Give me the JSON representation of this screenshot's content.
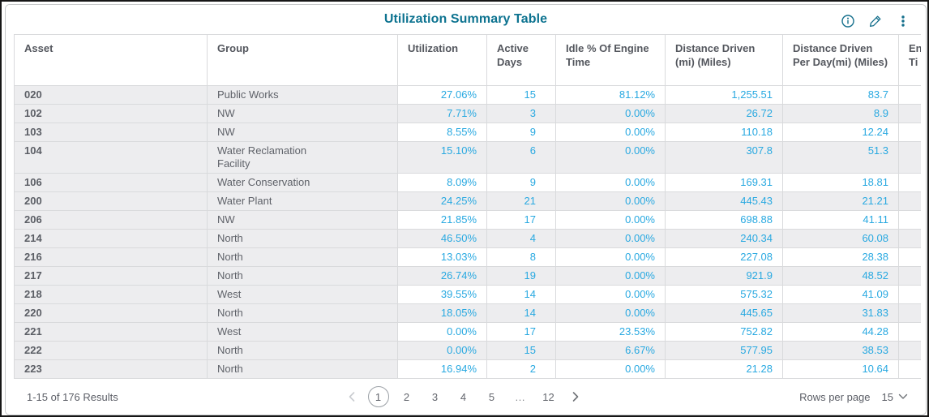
{
  "title": "Utilization Summary Table",
  "toolbar": {
    "icons": [
      {
        "name": "info-icon"
      },
      {
        "name": "edit-pencil-icon"
      },
      {
        "name": "kebab-menu-icon"
      }
    ]
  },
  "colors": {
    "accent_teal": "#0d7390",
    "value_blue": "#29a9e1",
    "row_gray": "#ededef",
    "border_gray": "#d9dadc",
    "header_text": "#54575e"
  },
  "table": {
    "columns": [
      {
        "key": "asset",
        "label": "Asset"
      },
      {
        "key": "group",
        "label": "Group"
      },
      {
        "key": "utilization",
        "label": "Utilization"
      },
      {
        "key": "active_days",
        "label": "Active Days"
      },
      {
        "key": "idle_pct",
        "label": "Idle % Of Engine Time"
      },
      {
        "key": "distance",
        "label": "Distance Driven (mi) (Miles)"
      },
      {
        "key": "distance_per_day",
        "label": "Distance Driven Per Day(mi) (Miles)"
      },
      {
        "key": "engine_time",
        "label": "En\nTi"
      }
    ],
    "rows": [
      {
        "asset": "020",
        "group": "Public Works",
        "utilization": "27.06%",
        "active_days": "15",
        "idle_pct": "81.12%",
        "distance": "1,255.51",
        "distance_per_day": "83.7",
        "engine_time": ""
      },
      {
        "asset": "102",
        "group": "NW",
        "utilization": "7.71%",
        "active_days": "3",
        "idle_pct": "0.00%",
        "distance": "26.72",
        "distance_per_day": "8.9",
        "engine_time": ""
      },
      {
        "asset": "103",
        "group": "NW",
        "utilization": "8.55%",
        "active_days": "9",
        "idle_pct": "0.00%",
        "distance": "110.18",
        "distance_per_day": "12.24",
        "engine_time": ""
      },
      {
        "asset": "104",
        "group": "Water Reclamation\nFacility",
        "utilization": "15.10%",
        "active_days": "6",
        "idle_pct": "0.00%",
        "distance": "307.8",
        "distance_per_day": "51.3",
        "engine_time": ""
      },
      {
        "asset": "106",
        "group": "Water Conservation",
        "utilization": "8.09%",
        "active_days": "9",
        "idle_pct": "0.00%",
        "distance": "169.31",
        "distance_per_day": "18.81",
        "engine_time": ""
      },
      {
        "asset": "200",
        "group": "Water Plant",
        "utilization": "24.25%",
        "active_days": "21",
        "idle_pct": "0.00%",
        "distance": "445.43",
        "distance_per_day": "21.21",
        "engine_time": ""
      },
      {
        "asset": "206",
        "group": "NW",
        "utilization": "21.85%",
        "active_days": "17",
        "idle_pct": "0.00%",
        "distance": "698.88",
        "distance_per_day": "41.11",
        "engine_time": ""
      },
      {
        "asset": "214",
        "group": "North",
        "utilization": "46.50%",
        "active_days": "4",
        "idle_pct": "0.00%",
        "distance": "240.34",
        "distance_per_day": "60.08",
        "engine_time": ""
      },
      {
        "asset": "216",
        "group": "North",
        "utilization": "13.03%",
        "active_days": "8",
        "idle_pct": "0.00%",
        "distance": "227.08",
        "distance_per_day": "28.38",
        "engine_time": ""
      },
      {
        "asset": "217",
        "group": "North",
        "utilization": "26.74%",
        "active_days": "19",
        "idle_pct": "0.00%",
        "distance": "921.9",
        "distance_per_day": "48.52",
        "engine_time": ""
      },
      {
        "asset": "218",
        "group": "West",
        "utilization": "39.55%",
        "active_days": "14",
        "idle_pct": "0.00%",
        "distance": "575.32",
        "distance_per_day": "41.09",
        "engine_time": ""
      },
      {
        "asset": "220",
        "group": "North",
        "utilization": "18.05%",
        "active_days": "14",
        "idle_pct": "0.00%",
        "distance": "445.65",
        "distance_per_day": "31.83",
        "engine_time": ""
      },
      {
        "asset": "221",
        "group": "West",
        "utilization": "0.00%",
        "active_days": "17",
        "idle_pct": "23.53%",
        "distance": "752.82",
        "distance_per_day": "44.28",
        "engine_time": ""
      },
      {
        "asset": "222",
        "group": "North",
        "utilization": "0.00%",
        "active_days": "15",
        "idle_pct": "6.67%",
        "distance": "577.95",
        "distance_per_day": "38.53",
        "engine_time": ""
      },
      {
        "asset": "223",
        "group": "North",
        "utilization": "16.94%",
        "active_days": "2",
        "idle_pct": "0.00%",
        "distance": "21.28",
        "distance_per_day": "10.64",
        "engine_time": ""
      }
    ]
  },
  "footer": {
    "results_text": "1-15 of 176 Results",
    "pagination": {
      "prev_label": "‹",
      "pages": [
        "1",
        "2",
        "3",
        "4",
        "5",
        "…",
        "12"
      ],
      "active_page": "1",
      "next_label": "›"
    },
    "rows_per_page_label": "Rows per page",
    "rows_per_page_value": "15"
  }
}
